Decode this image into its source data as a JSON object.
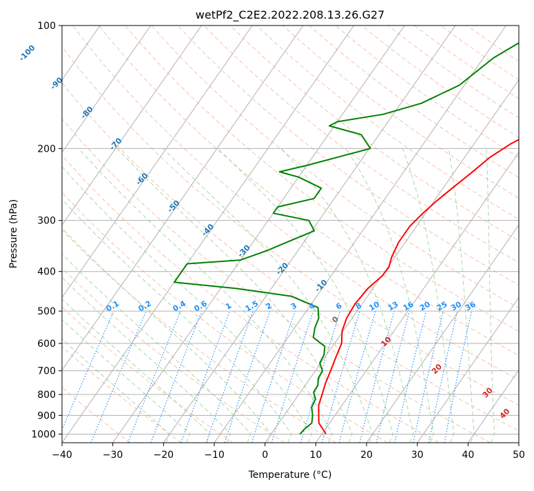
{
  "chart_data": {
    "type": "line",
    "title": "wetPf2_C2E2.2022.208.13.26.G27",
    "xlabel": "Temperature (°C)",
    "ylabel": "Pressure (hPa)",
    "xlim": [
      -40,
      50
    ],
    "ylim": [
      1050,
      100
    ],
    "y_scale": "log",
    "x_ticks": [
      -40,
      -30,
      -20,
      -10,
      0,
      10,
      20,
      30,
      40,
      50
    ],
    "y_ticks": [
      100,
      200,
      300,
      400,
      500,
      600,
      700,
      800,
      900,
      1000
    ],
    "grid": true,
    "series": [
      {
        "color": "#ff0000",
        "points": [
          [
            1000,
            10.8
          ],
          [
            970,
            9.4
          ],
          [
            940,
            7.9
          ],
          [
            900,
            6.8
          ],
          [
            850,
            5.4
          ],
          [
            800,
            4.6
          ],
          [
            750,
            3.7
          ],
          [
            700,
            3.0
          ],
          [
            650,
            2.2
          ],
          [
            600,
            1.4
          ],
          [
            560,
            -0.2
          ],
          [
            520,
            -1.1
          ],
          [
            480,
            -1.4
          ],
          [
            440,
            -1.0
          ],
          [
            410,
            0.1
          ],
          [
            390,
            0.2
          ],
          [
            370,
            -0.6
          ],
          [
            340,
            -1.3
          ],
          [
            310,
            -1.3
          ],
          [
            290,
            -0.6
          ],
          [
            270,
            0.4
          ],
          [
            250,
            1.8
          ],
          [
            230,
            3.4
          ],
          [
            210,
            5.0
          ],
          [
            195,
            7.2
          ],
          [
            180,
            10.5
          ],
          [
            160,
            13.5
          ],
          [
            140,
            16.0
          ],
          [
            125,
            18.5
          ],
          [
            115,
            21.0
          ],
          [
            108,
            22.8
          ],
          [
            100,
            23.6
          ]
        ]
      },
      {
        "color": "#008000",
        "points": [
          [
            1000,
            5.7
          ],
          [
            970,
            5.9
          ],
          [
            940,
            6.5
          ],
          [
            900,
            5.6
          ],
          [
            860,
            4.3
          ],
          [
            820,
            3.9
          ],
          [
            790,
            2.6
          ],
          [
            760,
            2.5
          ],
          [
            730,
            1.6
          ],
          [
            700,
            1.4
          ],
          [
            670,
            -0.2
          ],
          [
            640,
            -0.5
          ],
          [
            610,
            -1.5
          ],
          [
            580,
            -5.0
          ],
          [
            550,
            -6.0
          ],
          [
            520,
            -6.6
          ],
          [
            490,
            -8.2
          ],
          [
            460,
            -15.0
          ],
          [
            440,
            -27.0
          ],
          [
            425,
            -40.0
          ],
          [
            383,
            -40.0
          ],
          [
            375,
            -30.0
          ],
          [
            355,
            -26.0
          ],
          [
            340,
            -23.5
          ],
          [
            318,
            -19.5
          ],
          [
            300,
            -22.0
          ],
          [
            288,
            -30.0
          ],
          [
            278,
            -30.0
          ],
          [
            265,
            -24.0
          ],
          [
            250,
            -24.0
          ],
          [
            235,
            -30.0
          ],
          [
            228,
            -34.5
          ],
          [
            220,
            -30.0
          ],
          [
            200,
            -19.8
          ],
          [
            185,
            -23.5
          ],
          [
            176,
            -31.0
          ],
          [
            172,
            -30.0
          ],
          [
            165,
            -22.0
          ],
          [
            155,
            -16.0
          ],
          [
            140,
            -11.0
          ],
          [
            120,
            -8.0
          ],
          [
            110,
            -5.0
          ],
          [
            100,
            -0.2
          ]
        ]
      }
    ],
    "isotherm_labels": [
      "-100",
      "-90",
      "-80",
      "-70",
      "-60",
      "-50",
      "-40",
      "-30",
      "-20",
      "-10"
    ],
    "mixing_ratio_labels": [
      "0.1",
      "0.2",
      "0.4",
      "0.6",
      "1",
      "1.5",
      "2",
      "3",
      "4",
      "6",
      "8",
      "10",
      "13",
      "16",
      "20",
      "25",
      "30",
      "36"
    ],
    "moist_adiabat_labels": [
      "0",
      "10",
      "20",
      "30",
      "40"
    ],
    "colors": {
      "temperature": "#ff0000",
      "dewpoint": "#008000",
      "dry_adiabat": "#f4a582",
      "moist_adiabat": "#8fcf8f",
      "mixing_ratio": "#1f8fff",
      "isotherm_label": "#1f77b4",
      "moist_label": "#d62728",
      "zero_label": "#666666",
      "grid": "#b0b0b0"
    }
  }
}
